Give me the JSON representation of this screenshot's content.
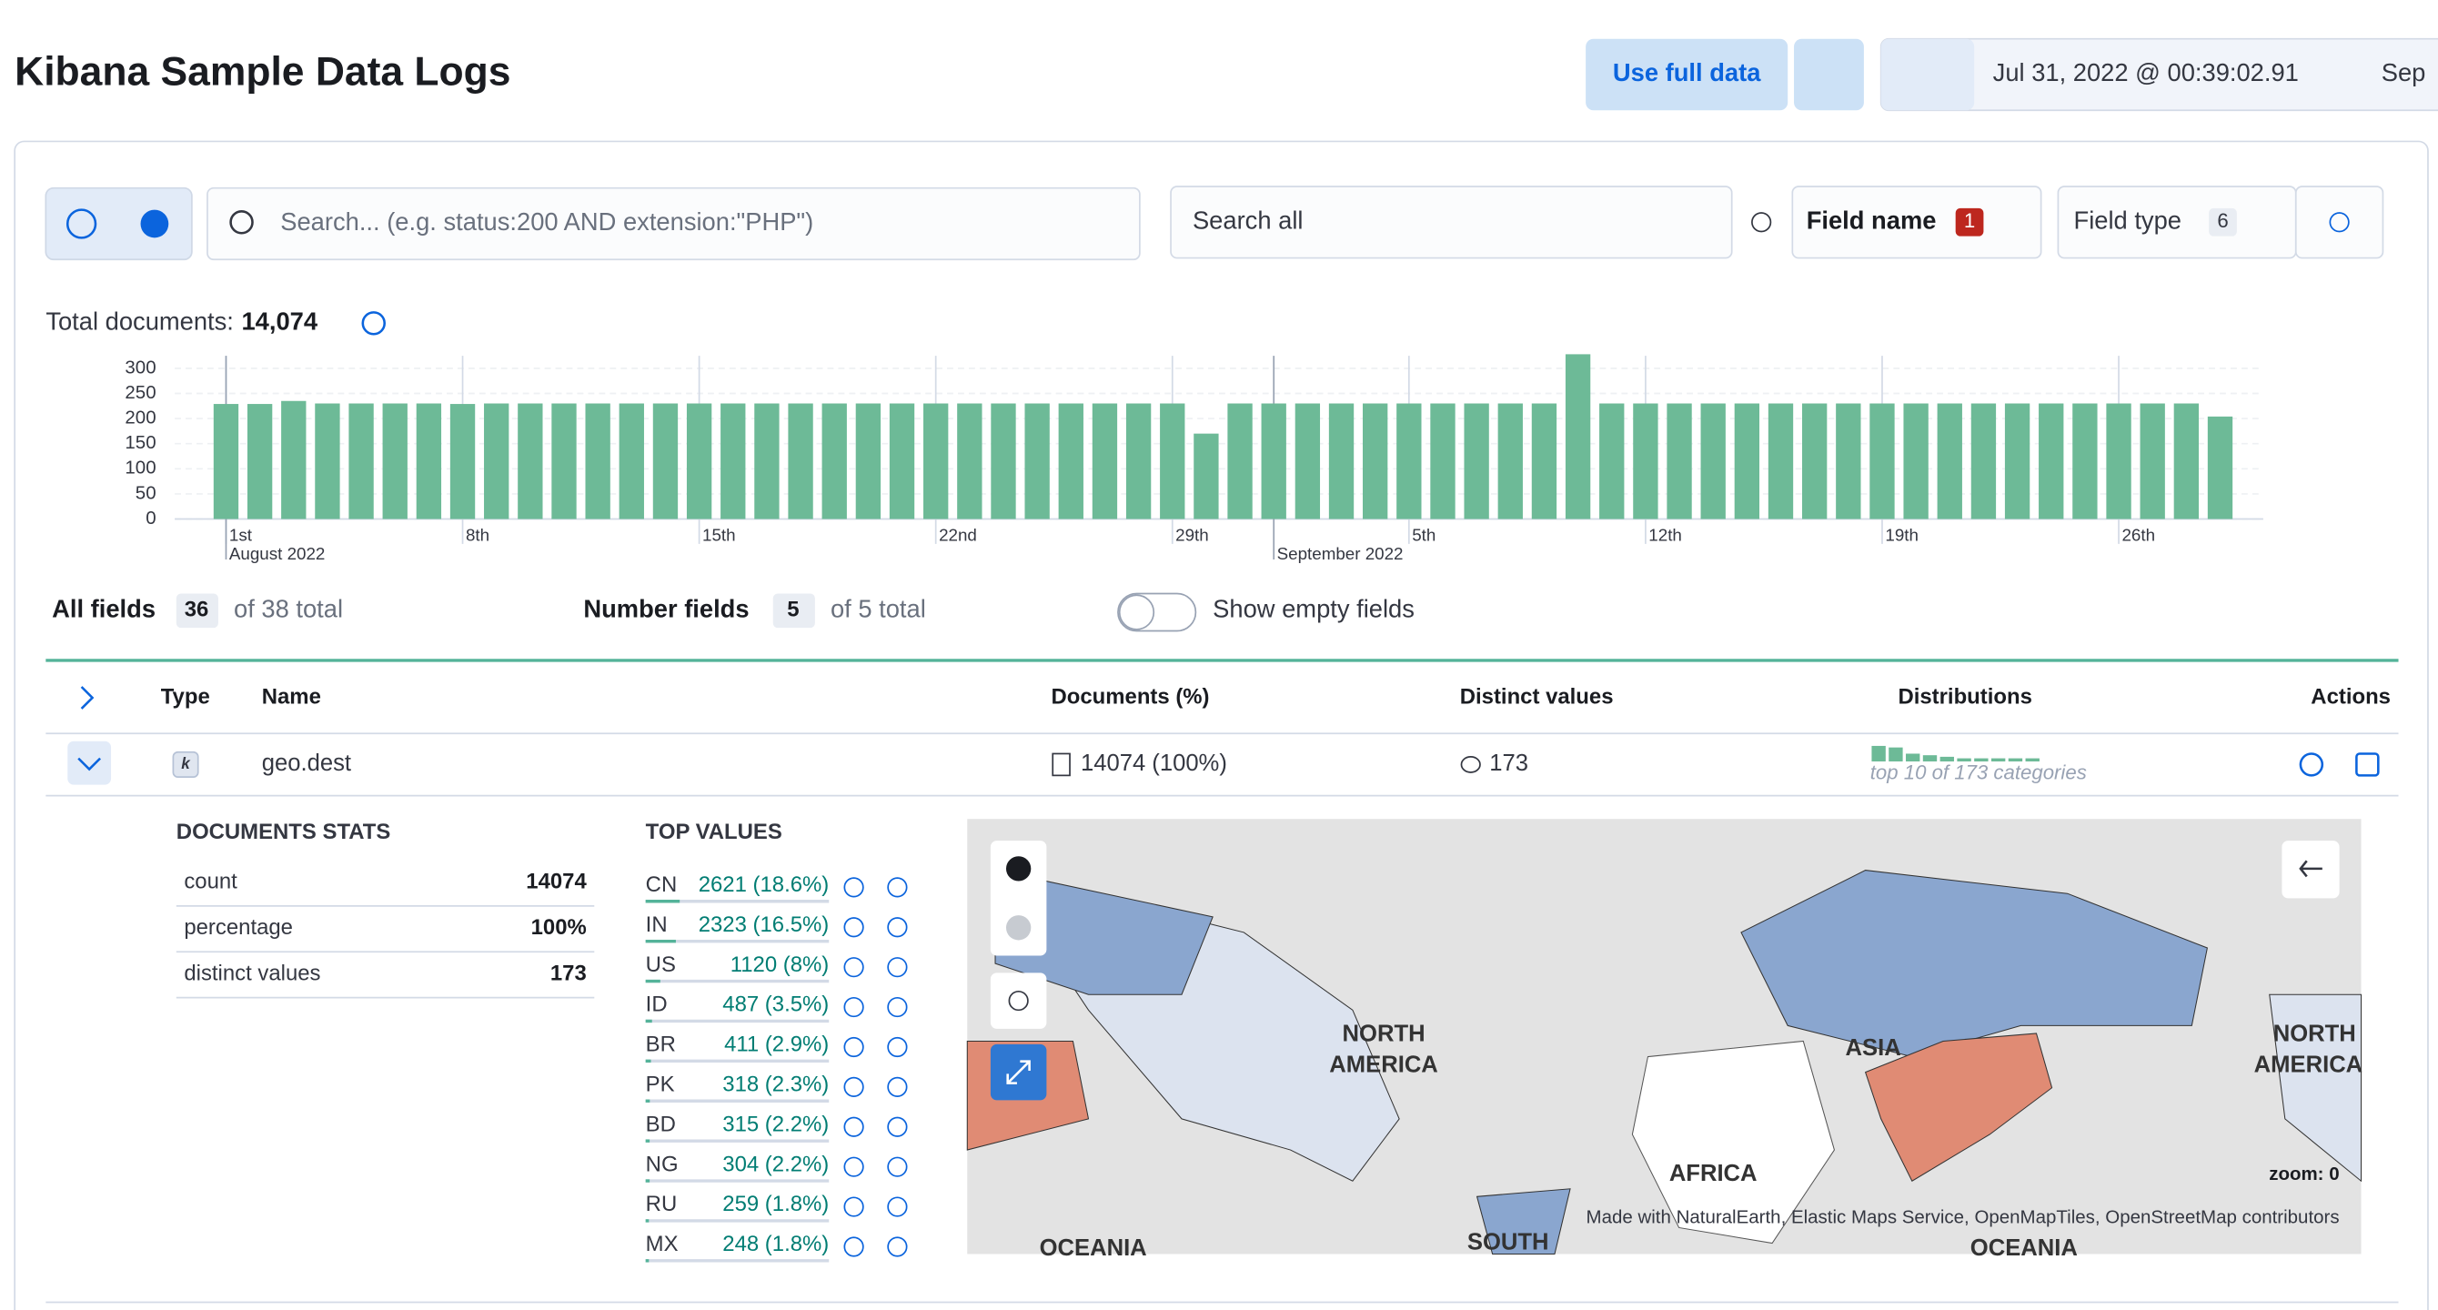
{
  "header": {
    "title": "Kibana Sample Data Logs",
    "use_full_data": "Use full data",
    "date_start": "Jul 31, 2022 @ 00:39:02.91",
    "date_end": "Sep"
  },
  "search": {
    "placeholder": "Search... (e.g. status:200 AND extension:\"PHP\")",
    "scope": "Search all",
    "field_name": "Field name",
    "field_name_count": 1,
    "field_type": "Field type",
    "field_type_count": 6
  },
  "summary": {
    "label": "Total documents:",
    "total": "14,074"
  },
  "chart_data": {
    "type": "bar",
    "color": "#6dba97",
    "values": [
      229,
      229,
      235,
      230,
      230,
      230,
      230,
      229,
      230,
      230,
      230,
      230,
      230,
      230,
      230,
      230,
      230,
      230,
      230,
      230,
      230,
      230,
      230,
      230,
      230,
      230,
      230,
      230,
      230,
      170,
      230,
      230,
      230,
      230,
      230,
      230,
      230,
      230,
      230,
      230,
      328,
      230,
      230,
      230,
      230,
      230,
      230,
      230,
      230,
      230,
      230,
      230,
      230,
      230,
      230,
      230,
      230,
      230,
      230,
      204
    ],
    "ylim": [
      0,
      330
    ],
    "yticks": [
      0,
      50,
      100,
      150,
      200,
      250,
      300
    ],
    "grid": true,
    "xticks": [
      {
        "value": 0,
        "label": "1st"
      },
      {
        "value": 7,
        "label": "8th"
      },
      {
        "value": 14,
        "label": "15th"
      },
      {
        "value": 21,
        "label": "22nd"
      },
      {
        "value": 28,
        "label": "29th"
      },
      {
        "value": 35,
        "label": "5th"
      },
      {
        "value": 42,
        "label": "12th"
      },
      {
        "value": 49,
        "label": "19th"
      },
      {
        "value": 56,
        "label": "26th"
      }
    ],
    "xgroups": [
      {
        "value": 0,
        "label": "August 2022"
      },
      {
        "value": 31,
        "label": "September 2022"
      }
    ]
  },
  "fields": {
    "all_label": "All fields",
    "all_count": 36,
    "all_total": "of 38 total",
    "number_label": "Number fields",
    "number_count": 5,
    "number_total": "of 5 total",
    "show_empty": "Show empty fields"
  },
  "table": {
    "headers": [
      "Type",
      "Name",
      "Documents (%)",
      "Distinct values",
      "Distributions",
      "Actions"
    ],
    "row": {
      "type": "k",
      "name": "geo.dest",
      "documents": "14074 (100%)",
      "distinct": "173",
      "distribution_note": "top 10 of 173 categories"
    }
  },
  "stats": {
    "title": "DOCUMENTS STATS",
    "rows": [
      [
        "count",
        "14074"
      ],
      [
        "percentage",
        "100%"
      ],
      [
        "distinct values",
        "173"
      ]
    ]
  },
  "top_values": {
    "title": "TOP VALUES",
    "rows": [
      {
        "key": "CN",
        "label": "2621 (18.6%)",
        "pct": 18.6
      },
      {
        "key": "IN",
        "label": "2323 (16.5%)",
        "pct": 16.5
      },
      {
        "key": "US",
        "label": "1120 (8%)",
        "pct": 8
      },
      {
        "key": "ID",
        "label": "487 (3.5%)",
        "pct": 3.5
      },
      {
        "key": "BR",
        "label": "411 (2.9%)",
        "pct": 2.9
      },
      {
        "key": "PK",
        "label": "318 (2.3%)",
        "pct": 2.3
      },
      {
        "key": "BD",
        "label": "315 (2.2%)",
        "pct": 2.2
      },
      {
        "key": "NG",
        "label": "304 (2.2%)",
        "pct": 2.2
      },
      {
        "key": "RU",
        "label": "259 (1.8%)",
        "pct": 1.8
      },
      {
        "key": "MX",
        "label": "248 (1.8%)",
        "pct": 1.8
      }
    ]
  },
  "map": {
    "labels": [
      "NORTH",
      "AMERICA",
      "ASIA",
      "AFRICA",
      "OCEANIA",
      "SOUTH",
      "NORTH",
      "AMERICA",
      "OCEANIA"
    ],
    "zoom": "zoom: 0",
    "attribution": "Made with NaturalEarth, Elastic Maps Service, OpenMapTiles, OpenStreetMap contributors"
  }
}
